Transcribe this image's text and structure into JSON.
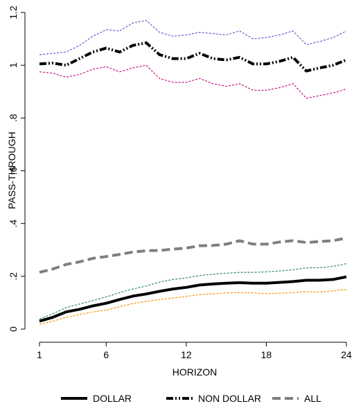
{
  "chart_data": {
    "type": "line",
    "title": "",
    "xlabel": "HORIZON",
    "ylabel": "PASS-THROUGH",
    "xlim": [
      1,
      24
    ],
    "ylim": [
      0,
      1.2
    ],
    "x_ticks": [
      1,
      6,
      12,
      18,
      24
    ],
    "y_ticks": [
      0,
      0.2,
      0.4,
      0.6,
      0.8,
      1,
      1.2
    ],
    "y_tick_labels": [
      "0",
      ".2",
      ".4",
      ".6",
      ".8",
      "1",
      "1.2"
    ],
    "grid": false,
    "legend_position": "bottom",
    "x": [
      1,
      2,
      3,
      4,
      5,
      6,
      7,
      8,
      9,
      10,
      11,
      12,
      13,
      14,
      15,
      16,
      17,
      18,
      19,
      20,
      21,
      22,
      23,
      24
    ],
    "series": [
      {
        "name": "DOLLAR",
        "style": "solid-thick",
        "color": "#000000",
        "values": [
          0.03,
          0.045,
          0.065,
          0.075,
          0.088,
          0.098,
          0.112,
          0.125,
          0.133,
          0.143,
          0.152,
          0.158,
          0.167,
          0.171,
          0.174,
          0.176,
          0.174,
          0.174,
          0.177,
          0.18,
          0.185,
          0.185,
          0.188,
          0.198
        ]
      },
      {
        "name": "NON DOLLAR",
        "style": "dash-dot-thick",
        "color": "#000000",
        "values": [
          1.005,
          1.008,
          1.0,
          1.025,
          1.05,
          1.065,
          1.05,
          1.075,
          1.085,
          1.04,
          1.025,
          1.025,
          1.045,
          1.025,
          1.02,
          1.03,
          1.005,
          1.005,
          1.015,
          1.03,
          0.978,
          0.99,
          1.0,
          1.02
        ]
      },
      {
        "name": "ALL",
        "style": "dashed-thick",
        "color": "#7f7f7f",
        "values": [
          0.215,
          0.228,
          0.245,
          0.255,
          0.268,
          0.275,
          0.283,
          0.292,
          0.297,
          0.298,
          0.303,
          0.307,
          0.316,
          0.317,
          0.322,
          0.335,
          0.322,
          0.322,
          0.33,
          0.335,
          0.328,
          0.332,
          0.335,
          0.345
        ]
      }
    ],
    "bands": [
      {
        "band_of": "DOLLAR",
        "bound": "upper",
        "color": "#2e8b57",
        "values": [
          0.038,
          0.058,
          0.082,
          0.095,
          0.108,
          0.122,
          0.138,
          0.152,
          0.163,
          0.178,
          0.188,
          0.194,
          0.203,
          0.208,
          0.212,
          0.215,
          0.215,
          0.217,
          0.22,
          0.225,
          0.232,
          0.233,
          0.238,
          0.248
        ]
      },
      {
        "band_of": "DOLLAR",
        "bound": "lower",
        "color": "#ff8c00",
        "values": [
          0.018,
          0.03,
          0.045,
          0.055,
          0.065,
          0.072,
          0.085,
          0.097,
          0.105,
          0.112,
          0.118,
          0.124,
          0.131,
          0.134,
          0.137,
          0.138,
          0.137,
          0.134,
          0.136,
          0.138,
          0.142,
          0.14,
          0.145,
          0.15
        ]
      },
      {
        "band_of": "NON DOLLAR",
        "bound": "upper",
        "color": "#6a5acd",
        "values": [
          1.04,
          1.045,
          1.05,
          1.075,
          1.11,
          1.135,
          1.13,
          1.16,
          1.17,
          1.125,
          1.11,
          1.115,
          1.125,
          1.12,
          1.115,
          1.13,
          1.1,
          1.105,
          1.115,
          1.13,
          1.078,
          1.09,
          1.105,
          1.13
        ]
      },
      {
        "band_of": "NON DOLLAR",
        "bound": "lower",
        "color": "#c71585",
        "values": [
          0.975,
          0.97,
          0.955,
          0.965,
          0.985,
          0.995,
          0.975,
          0.99,
          1.0,
          0.95,
          0.935,
          0.935,
          0.95,
          0.93,
          0.92,
          0.93,
          0.905,
          0.905,
          0.915,
          0.93,
          0.875,
          0.885,
          0.895,
          0.91
        ]
      }
    ]
  }
}
